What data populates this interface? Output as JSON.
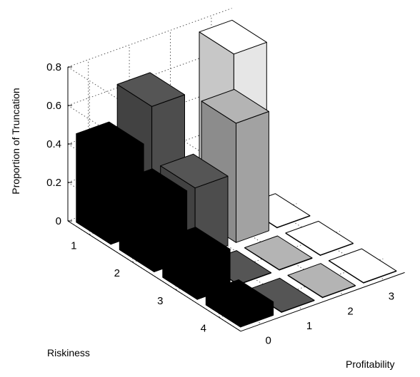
{
  "chart_data": {
    "type": "bar3d",
    "title": "",
    "xlabel": "Profitability",
    "ylabel": "Riskiness",
    "zlabel": "Proportion of Truncation",
    "x_categories": [
      "0",
      "1",
      "2",
      "3"
    ],
    "y_categories": [
      "1",
      "2",
      "3",
      "4"
    ],
    "zlim": [
      0,
      0.8
    ],
    "z_ticks": [
      "0",
      "0.2",
      "0.4",
      "0.6",
      "0.8"
    ],
    "grid": true,
    "legend": "none",
    "colors_by_profitability": [
      "#000000",
      "#555555",
      "#b4b4b4",
      "#ffffff"
    ],
    "values": [
      {
        "riskiness": "1",
        "profitability": "0",
        "value": 0.46
      },
      {
        "riskiness": "1",
        "profitability": "1",
        "value": 0.64
      },
      {
        "riskiness": "1",
        "profitability": "2",
        "value": 0.05
      },
      {
        "riskiness": "1",
        "profitability": "3",
        "value": 0.76
      },
      {
        "riskiness": "2",
        "profitability": "0",
        "value": 0.36
      },
      {
        "riskiness": "2",
        "profitability": "1",
        "value": 0.36
      },
      {
        "riskiness": "2",
        "profitability": "2",
        "value": 0.62
      },
      {
        "riskiness": "2",
        "profitability": "3",
        "value": 0.0
      },
      {
        "riskiness": "3",
        "profitability": "0",
        "value": 0.2
      },
      {
        "riskiness": "3",
        "profitability": "1",
        "value": 0.0
      },
      {
        "riskiness": "3",
        "profitability": "2",
        "value": 0.0
      },
      {
        "riskiness": "3",
        "profitability": "3",
        "value": 0.0
      },
      {
        "riskiness": "4",
        "profitability": "0",
        "value": 0.07
      },
      {
        "riskiness": "4",
        "profitability": "1",
        "value": 0.0
      },
      {
        "riskiness": "4",
        "profitability": "2",
        "value": 0.0
      },
      {
        "riskiness": "4",
        "profitability": "3",
        "value": 0.0
      }
    ]
  }
}
